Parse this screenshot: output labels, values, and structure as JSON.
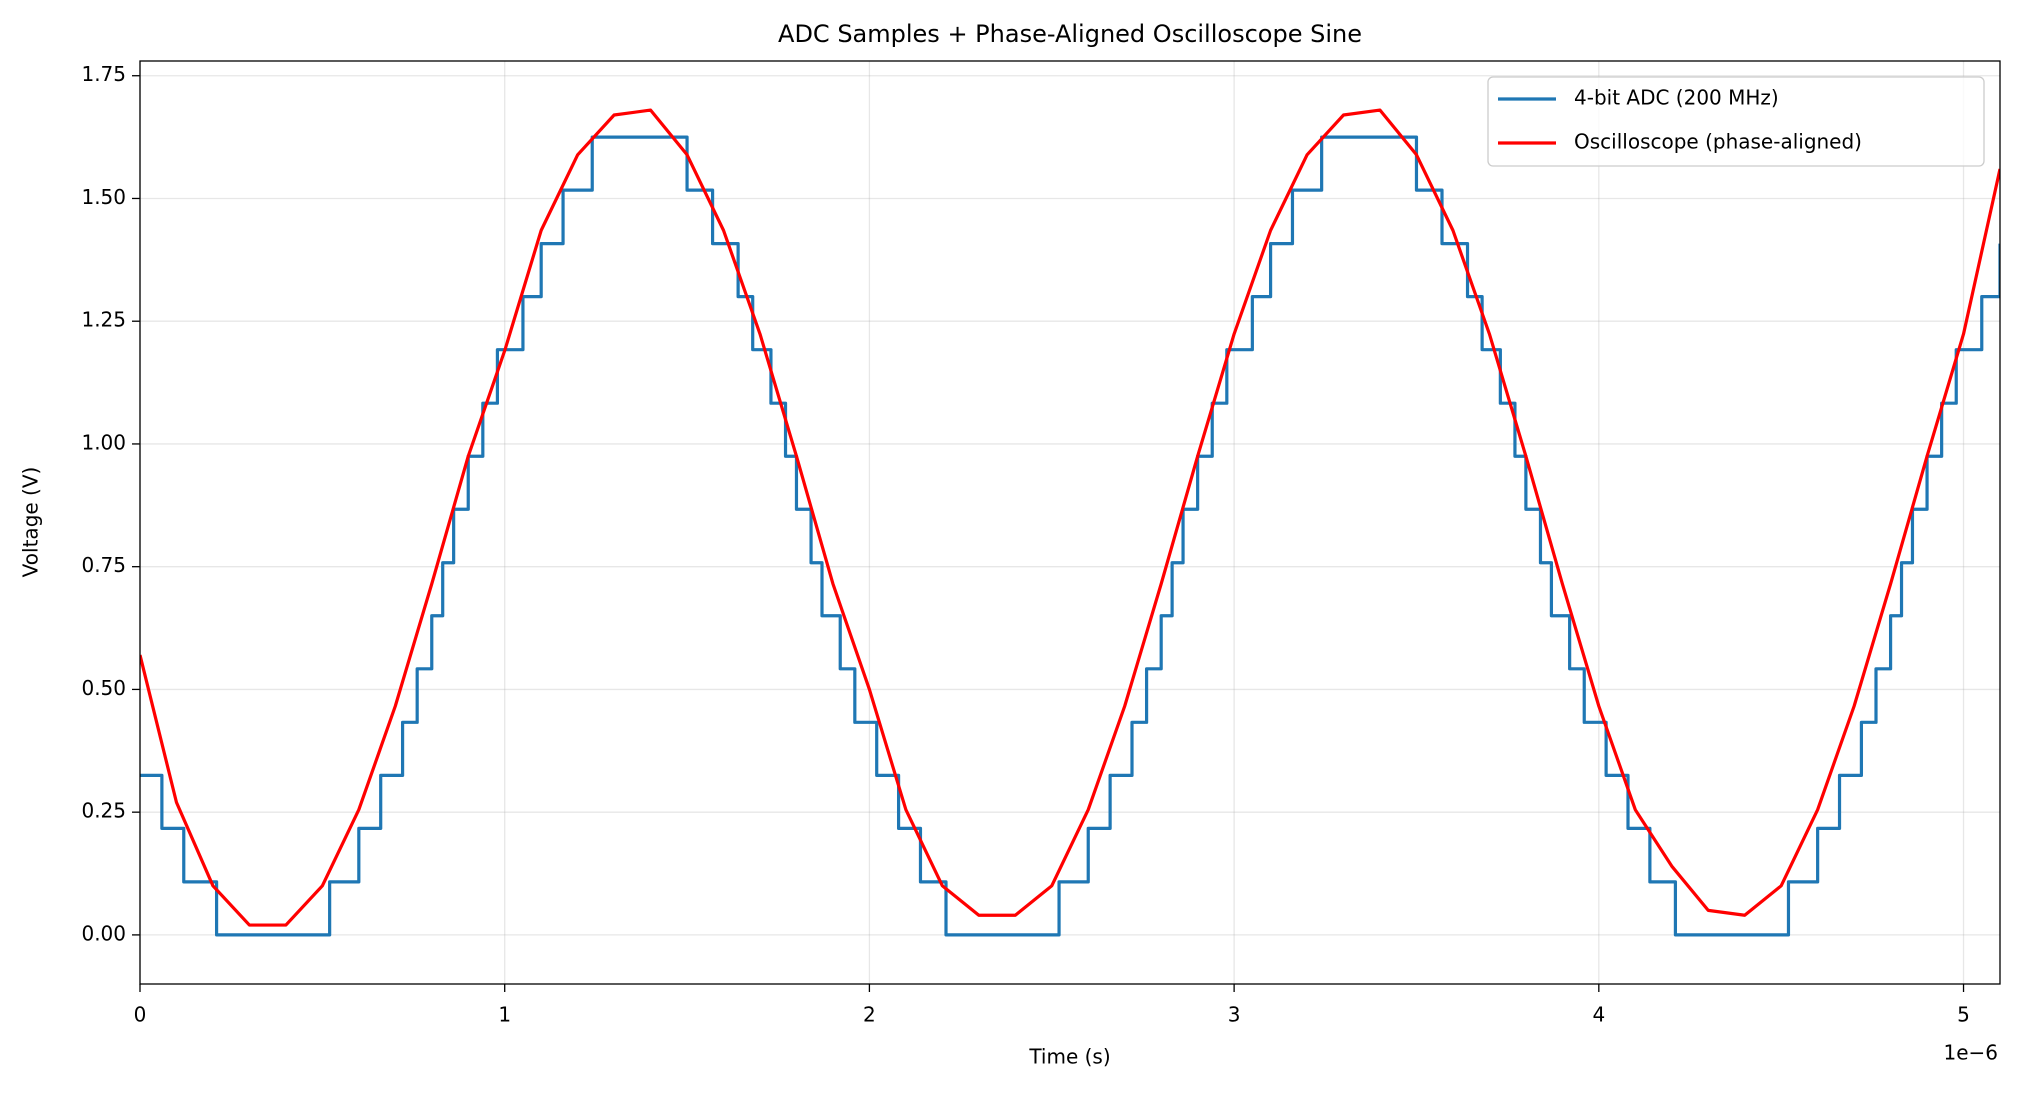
{
  "chart_data": {
    "type": "line",
    "title": "ADC Samples + Phase-Aligned Oscilloscope Sine",
    "x_label": "Time (s)",
    "y_label": "Voltage (V)",
    "x_offset_label": "1e−6",
    "xlim": [
      0,
      5.1
    ],
    "xticks": [
      0,
      1,
      2,
      3,
      4,
      5
    ],
    "ylim": [
      -0.1,
      1.78
    ],
    "yticks": [
      {
        "value": 0,
        "label": "0.00"
      },
      {
        "value": 0.25,
        "label": "0.25"
      },
      {
        "value": 0.5,
        "label": "0.50"
      },
      {
        "value": 0.75,
        "label": "0.75"
      },
      {
        "value": 1,
        "label": "1.00"
      },
      {
        "value": 1.25,
        "label": "1.25"
      },
      {
        "value": 1.5,
        "label": "1.50"
      },
      {
        "value": 1.75,
        "label": "1.75"
      }
    ],
    "grid": true,
    "legend": "upper right",
    "series": [
      {
        "name": "4-bit ADC (200 MHz)",
        "color": "#1f77b4",
        "step": true,
        "x": [
          0,
          0.06,
          0.12,
          0.21,
          0.52,
          0.6,
          0.66,
          0.72,
          0.76,
          0.8,
          0.83,
          0.86,
          0.9,
          0.94,
          0.98,
          1.05,
          1.1,
          1.16,
          1.24,
          1.5,
          1.57,
          1.64,
          1.68,
          1.73,
          1.77,
          1.8,
          1.84,
          1.87,
          1.92,
          1.96,
          2.02,
          2.08,
          2.14,
          2.21,
          2.52,
          2.6,
          2.66,
          2.72,
          2.76,
          2.8,
          2.83,
          2.86,
          2.9,
          2.94,
          2.98,
          3.05,
          3.1,
          3.16,
          3.24,
          3.5,
          3.57,
          3.64,
          3.68,
          3.73,
          3.77,
          3.8,
          3.84,
          3.87,
          3.92,
          3.96,
          4.02,
          4.08,
          4.14,
          4.21,
          4.52,
          4.6,
          4.66,
          4.72,
          4.76,
          4.8,
          4.83,
          4.86,
          4.9,
          4.94,
          4.98,
          5.05,
          5.1
        ],
        "values": [
          0.325,
          0.217,
          0.108,
          0,
          0.108,
          0.217,
          0.325,
          0.433,
          0.542,
          0.65,
          0.758,
          0.867,
          0.975,
          1.083,
          1.192,
          1.3,
          1.408,
          1.517,
          1.625,
          1.517,
          1.408,
          1.3,
          1.192,
          1.083,
          0.975,
          0.867,
          0.758,
          0.65,
          0.542,
          0.433,
          0.325,
          0.217,
          0.108,
          0,
          0.108,
          0.217,
          0.325,
          0.433,
          0.542,
          0.65,
          0.758,
          0.867,
          0.975,
          1.083,
          1.192,
          1.3,
          1.408,
          1.517,
          1.625,
          1.517,
          1.408,
          1.3,
          1.192,
          1.083,
          0.975,
          0.867,
          0.758,
          0.65,
          0.542,
          0.433,
          0.325,
          0.217,
          0.108,
          0,
          0.108,
          0.217,
          0.325,
          0.433,
          0.542,
          0.65,
          0.758,
          0.867,
          0.975,
          1.083,
          1.192,
          1.3,
          1.408
        ]
      },
      {
        "name": "Oscilloscope (phase-aligned)",
        "color": "#ff0000",
        "x": [
          0,
          0.1,
          0.2,
          0.3,
          0.4,
          0.5,
          0.6,
          0.7,
          0.8,
          0.9,
          1,
          1.1,
          1.2,
          1.3,
          1.4,
          1.5,
          1.6,
          1.7,
          1.8,
          1.9,
          2,
          2.1,
          2.2,
          2.3,
          2.4,
          2.5,
          2.6,
          2.7,
          2.8,
          2.9,
          3,
          3.1,
          3.2,
          3.3,
          3.4,
          3.5,
          3.6,
          3.7,
          3.8,
          3.9,
          4,
          4.1,
          4.2,
          4.3,
          4.4,
          4.5,
          4.6,
          4.7,
          4.8,
          4.9,
          5,
          5.1
        ],
        "values": [
          0.57,
          0.27,
          0.1,
          0.02,
          0.02,
          0.1,
          0.255,
          0.466,
          0.715,
          0.975,
          1.19,
          1.435,
          1.589,
          1.67,
          1.68,
          1.589,
          1.435,
          1.224,
          0.975,
          0.715,
          0.5,
          0.255,
          0.1,
          0.04,
          0.04,
          0.1,
          0.255,
          0.466,
          0.715,
          0.975,
          1.224,
          1.435,
          1.589,
          1.67,
          1.68,
          1.589,
          1.435,
          1.224,
          0.975,
          0.715,
          0.466,
          0.255,
          0.14,
          0.05,
          0.04,
          0.1,
          0.255,
          0.466,
          0.715,
          0.975,
          1.224,
          1.56
        ]
      }
    ]
  }
}
